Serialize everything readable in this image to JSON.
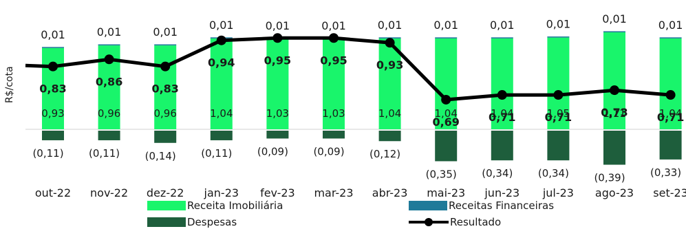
{
  "chart_data": {
    "type": "bar",
    "title": "",
    "xlabel": "",
    "ylabel": "R$/cota",
    "grid": false,
    "legend_position": "bottom",
    "categories": [
      "out-22",
      "nov-22",
      "dez-22",
      "jan-23",
      "fev-23",
      "mar-23",
      "abr-23",
      "mai-23",
      "jun-23",
      "jul-23",
      "ago-23",
      "set-23"
    ],
    "series": [
      {
        "name": "Receita Imobiliária",
        "kind": "bar",
        "color": "#19f56b",
        "values": [
          0.93,
          0.96,
          0.96,
          1.04,
          1.03,
          1.03,
          1.04,
          1.04,
          1.04,
          1.05,
          1.11,
          1.04
        ],
        "labels": [
          "0,93",
          "0,96",
          "0,96",
          "1,04",
          "1,03",
          "1,03",
          "1,04",
          "1,04",
          "1,04",
          "1,05",
          "1,11",
          "1,04"
        ]
      },
      {
        "name": "Receitas Financeiras",
        "kind": "bar",
        "color": "#1f7a99",
        "values": [
          0.01,
          0.01,
          0.01,
          0.01,
          0.01,
          0.01,
          0.01,
          0.01,
          0.01,
          0.01,
          0.01,
          0.01
        ],
        "labels": [
          "0,01",
          "0,01",
          "0,01",
          "0,01",
          "0,01",
          "0,01",
          "0,01",
          "0,01",
          "0,01",
          "0,01",
          "0,01",
          "0,01"
        ]
      },
      {
        "name": "Despesas",
        "kind": "bar",
        "color": "#1e5e3c",
        "values": [
          -0.11,
          -0.11,
          -0.14,
          -0.11,
          -0.09,
          -0.09,
          -0.12,
          -0.35,
          -0.34,
          -0.34,
          -0.39,
          -0.33
        ],
        "labels": [
          "(0,11)",
          "(0,11)",
          "(0,14)",
          "(0,11)",
          "(0,09)",
          "(0,09)",
          "(0,12)",
          "(0,35)",
          "(0,34)",
          "(0,34)",
          "(0,39)",
          "(0,33)"
        ]
      },
      {
        "name": "Resultado",
        "kind": "line",
        "color": "#000000",
        "values": [
          0.83,
          0.86,
          0.83,
          0.94,
          0.95,
          0.95,
          0.93,
          0.69,
          0.71,
          0.71,
          0.73,
          0.71
        ],
        "labels": [
          "0,83",
          "0,86",
          "0,83",
          "0,94",
          "0,95",
          "0,95",
          "0,93",
          "0,69",
          "0,71",
          "0,71",
          "0,73",
          "0,71"
        ]
      }
    ]
  }
}
